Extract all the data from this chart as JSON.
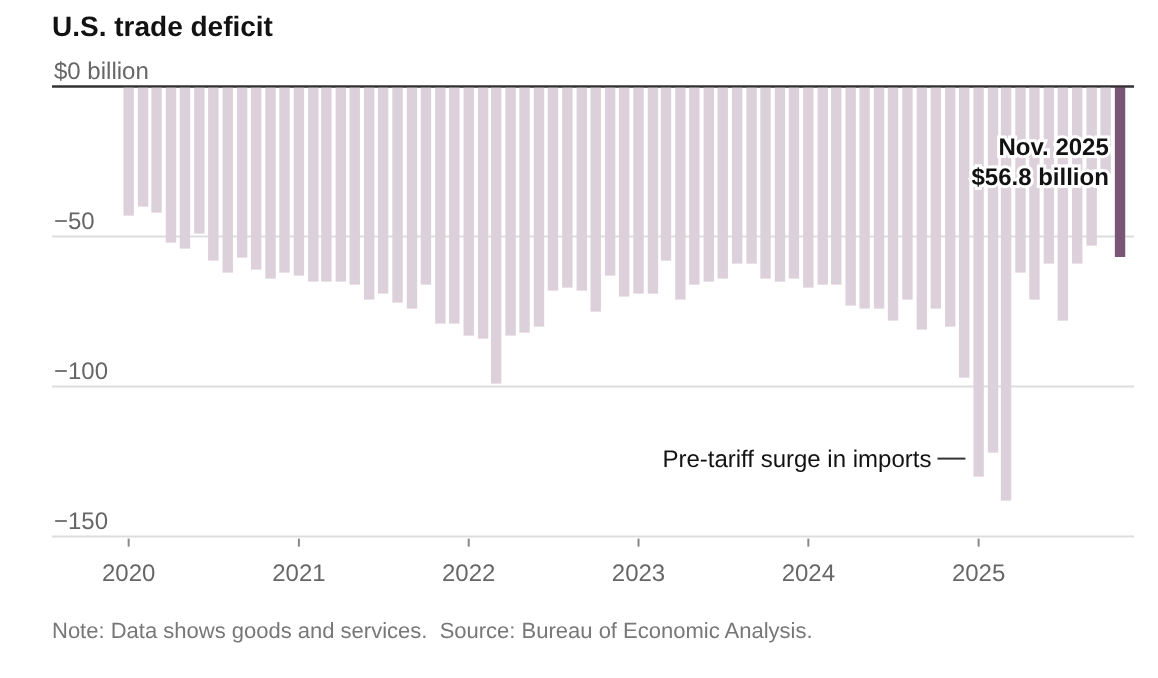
{
  "chart_data": {
    "type": "bar",
    "title": "U.S. trade deficit",
    "x": [
      "2020-01",
      "2020-02",
      "2020-03",
      "2020-04",
      "2020-05",
      "2020-06",
      "2020-07",
      "2020-08",
      "2020-09",
      "2020-10",
      "2020-11",
      "2020-12",
      "2021-01",
      "2021-02",
      "2021-03",
      "2021-04",
      "2021-05",
      "2021-06",
      "2021-07",
      "2021-08",
      "2021-09",
      "2021-10",
      "2021-11",
      "2021-12",
      "2022-01",
      "2022-02",
      "2022-03",
      "2022-04",
      "2022-05",
      "2022-06",
      "2022-07",
      "2022-08",
      "2022-09",
      "2022-10",
      "2022-11",
      "2022-12",
      "2023-01",
      "2023-02",
      "2023-03",
      "2023-04",
      "2023-05",
      "2023-06",
      "2023-07",
      "2023-08",
      "2023-09",
      "2023-10",
      "2023-11",
      "2023-12",
      "2024-01",
      "2024-02",
      "2024-03",
      "2024-04",
      "2024-05",
      "2024-06",
      "2024-07",
      "2024-08",
      "2024-09",
      "2024-10",
      "2024-11",
      "2024-12",
      "2025-01",
      "2025-02",
      "2025-03",
      "2025-04",
      "2025-05",
      "2025-06",
      "2025-07",
      "2025-08",
      "2025-09",
      "2025-10",
      "2025-11"
    ],
    "values": [
      -43,
      -40,
      -42,
      -52,
      -54,
      -49,
      -58,
      -62,
      -57,
      -61,
      -64,
      -62,
      -63,
      -65,
      -65,
      -65,
      -66,
      -71,
      -69,
      -72,
      -74,
      -66,
      -79,
      -79,
      -83,
      -84,
      -99,
      -83,
      -82,
      -80,
      -68,
      -67,
      -68,
      -75,
      -63,
      -70,
      -69,
      -69,
      -58,
      -71,
      -66,
      -65,
      -64,
      -59,
      -59,
      -64,
      -65,
      -64,
      -67,
      -66,
      -66,
      -73,
      -74,
      -74,
      -78,
      -71,
      -81,
      -74,
      -80,
      -97,
      -130,
      -122,
      -138,
      -62,
      -71,
      -59,
      -78,
      -59,
      -53,
      -29,
      -56.8
    ],
    "colors": [
      "#dcd0da",
      "#dcd0da",
      "#dcd0da",
      "#dcd0da",
      "#dcd0da",
      "#dcd0da",
      "#dcd0da",
      "#dcd0da",
      "#dcd0da",
      "#dcd0da",
      "#dcd0da",
      "#dcd0da",
      "#dcd0da",
      "#dcd0da",
      "#dcd0da",
      "#dcd0da",
      "#dcd0da",
      "#dcd0da",
      "#dcd0da",
      "#dcd0da",
      "#dcd0da",
      "#dcd0da",
      "#dcd0da",
      "#dcd0da",
      "#dcd0da",
      "#dcd0da",
      "#dcd0da",
      "#dcd0da",
      "#dcd0da",
      "#dcd0da",
      "#dcd0da",
      "#dcd0da",
      "#dcd0da",
      "#dcd0da",
      "#dcd0da",
      "#dcd0da",
      "#dcd0da",
      "#dcd0da",
      "#dcd0da",
      "#dcd0da",
      "#dcd0da",
      "#dcd0da",
      "#dcd0da",
      "#dcd0da",
      "#dcd0da",
      "#dcd0da",
      "#dcd0da",
      "#dcd0da",
      "#dcd0da",
      "#dcd0da",
      "#dcd0da",
      "#dcd0da",
      "#dcd0da",
      "#dcd0da",
      "#dcd0da",
      "#dcd0da",
      "#dcd0da",
      "#dcd0da",
      "#dcd0da",
      "#dcd0da",
      "#dcd0da",
      "#dcd0da",
      "#dcd0da",
      "#dcd0da",
      "#dcd0da",
      "#dcd0da",
      "#dcd0da",
      "#dcd0da",
      "#dcd0da",
      "#dcd0da",
      "#7a5676"
    ],
    "xlim": [
      "2019-12-16",
      "2025-12-01"
    ],
    "xticks": [
      {
        "value": "2020",
        "label": "2020"
      },
      {
        "value": "2021",
        "label": "2021"
      },
      {
        "value": "2022",
        "label": "2022"
      },
      {
        "value": "2023",
        "label": "2023"
      },
      {
        "value": "2024",
        "label": "2024"
      },
      {
        "value": "2025",
        "label": "2025"
      }
    ],
    "ylim": [
      -150,
      0
    ],
    "yticks": [
      {
        "value": 0,
        "label": "$0 billion"
      },
      {
        "value": -50,
        "label": "−50"
      },
      {
        "value": -100,
        "label": "−100"
      },
      {
        "value": -150,
        "label": "−150"
      }
    ],
    "grid": "y",
    "annotations": [
      {
        "text": "Nov. 2025\n$56.8 billion",
        "x": "2025-11",
        "y": -25
      },
      {
        "text": "Pre-tariff surge in imports",
        "x": "2025-01",
        "y": -124
      },
      "Note: Data shows goods and services.  Source: Bureau of Economic Analysis."
    ]
  }
}
